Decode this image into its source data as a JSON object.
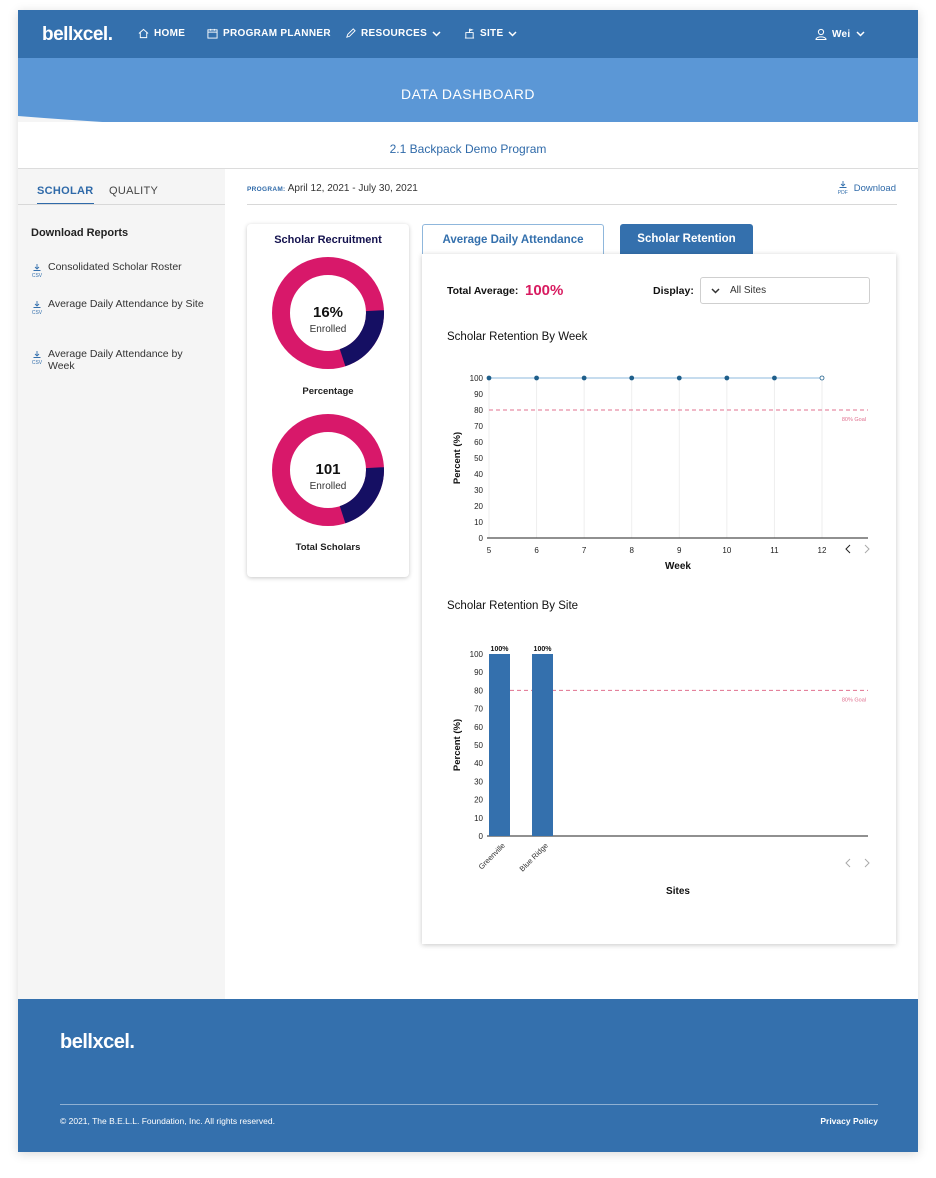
{
  "nav": {
    "logo": "bellxcel.",
    "home": "HOME",
    "planner": "PROGRAM PLANNER",
    "resources": "RESOURCES",
    "site": "SITE",
    "user": "Wei"
  },
  "banner": {
    "title": "DATA DASHBOARD"
  },
  "program": {
    "name": "2.1 Backpack Demo Program",
    "label": "PROGRAM:",
    "dates": "April 12, 2021 - July 30, 2021"
  },
  "sidebar": {
    "tabs": [
      "SCHOLAR",
      "QUALITY"
    ],
    "heading": "Download Reports",
    "file_tag": "CSV",
    "reports": [
      "Consolidated Scholar Roster",
      "Average Daily Attendance by Site",
      "Average Daily Attendance by Week"
    ]
  },
  "download": {
    "tag": "PDF",
    "label": "Download"
  },
  "recruitment": {
    "title": "Scholar Recruitment",
    "percent": {
      "value": "16%",
      "sub": "Enrolled",
      "caption": "Percentage",
      "fraction": 0.16
    },
    "total": {
      "value": "101",
      "sub": "Enrolled",
      "caption": "Total Scholars",
      "fraction": 0.16
    },
    "colors": {
      "main": "#d8186a",
      "accent": "#150f63"
    }
  },
  "tabs": {
    "attendance": "Average Daily Attendance",
    "retention": "Scholar Retention"
  },
  "panel": {
    "total_label": "Total Average:",
    "total_value": "100%",
    "display_label": "Display:",
    "display_value": "All Sites"
  },
  "chart_data": [
    {
      "type": "line",
      "title": "Scholar Retention By Week",
      "xlabel": "Week",
      "ylabel": "Percent (%)",
      "x": [
        5,
        6,
        7,
        8,
        9,
        10,
        11,
        12
      ],
      "series": [
        {
          "values": [
            100,
            100,
            100,
            100,
            100,
            100,
            100,
            100
          ]
        }
      ],
      "ylim": [
        0,
        100
      ],
      "yticks": [
        0,
        10,
        20,
        30,
        40,
        50,
        60,
        70,
        80,
        90,
        100
      ],
      "goal": {
        "value": 80,
        "label": "80% Goal"
      },
      "color": "#3470ad",
      "goal_color": "#e0708f"
    },
    {
      "type": "bar",
      "title": "Scholar Retention By Site",
      "xlabel": "Sites",
      "ylabel": "Percent (%)",
      "categories": [
        "Greenville",
        "Blue Ridge"
      ],
      "values": [
        100,
        100
      ],
      "data_labels": [
        "100%",
        "100%"
      ],
      "ylim": [
        0,
        100
      ],
      "yticks": [
        0,
        10,
        20,
        30,
        40,
        50,
        60,
        70,
        80,
        90,
        100
      ],
      "goal": {
        "value": 80,
        "label": "80% Goal"
      },
      "color": "#3470ad",
      "goal_color": "#e0708f"
    }
  ],
  "footer": {
    "logo": "bellxcel.",
    "copyright": "© 2021, The B.E.L.L. Foundation, Inc. All rights reserved.",
    "privacy": "Privacy Policy"
  }
}
